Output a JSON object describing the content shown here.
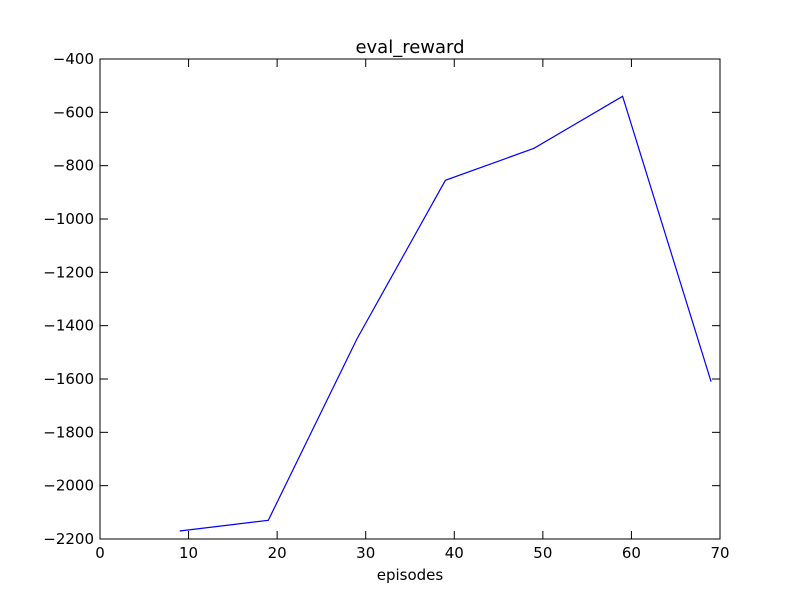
{
  "chart_data": {
    "type": "line",
    "title": "eval_reward",
    "xlabel": "episodes",
    "ylabel": "",
    "xlim": [
      0,
      70
    ],
    "ylim": [
      -2200,
      -400
    ],
    "xticks": [
      0,
      10,
      20,
      30,
      40,
      50,
      60,
      70
    ],
    "yticks": [
      -2200,
      -2000,
      -1800,
      -1600,
      -1400,
      -1200,
      -1000,
      -800,
      -600,
      -400
    ],
    "x_tick_labels": [
      "0",
      "10",
      "20",
      "30",
      "40",
      "50",
      "60",
      "70"
    ],
    "y_tick_labels": [
      "−2200",
      "−2000",
      "−1800",
      "−1600",
      "−1400",
      "−1200",
      "−1000",
      "−800",
      "−600",
      "−400"
    ],
    "grid": false,
    "series": [
      {
        "name": "eval_reward",
        "color": "#0000ff",
        "x": [
          9,
          19,
          29,
          39,
          49,
          59,
          69
        ],
        "y": [
          -2170,
          -2130,
          -1450,
          -855,
          -735,
          -540,
          -1610
        ]
      }
    ]
  }
}
